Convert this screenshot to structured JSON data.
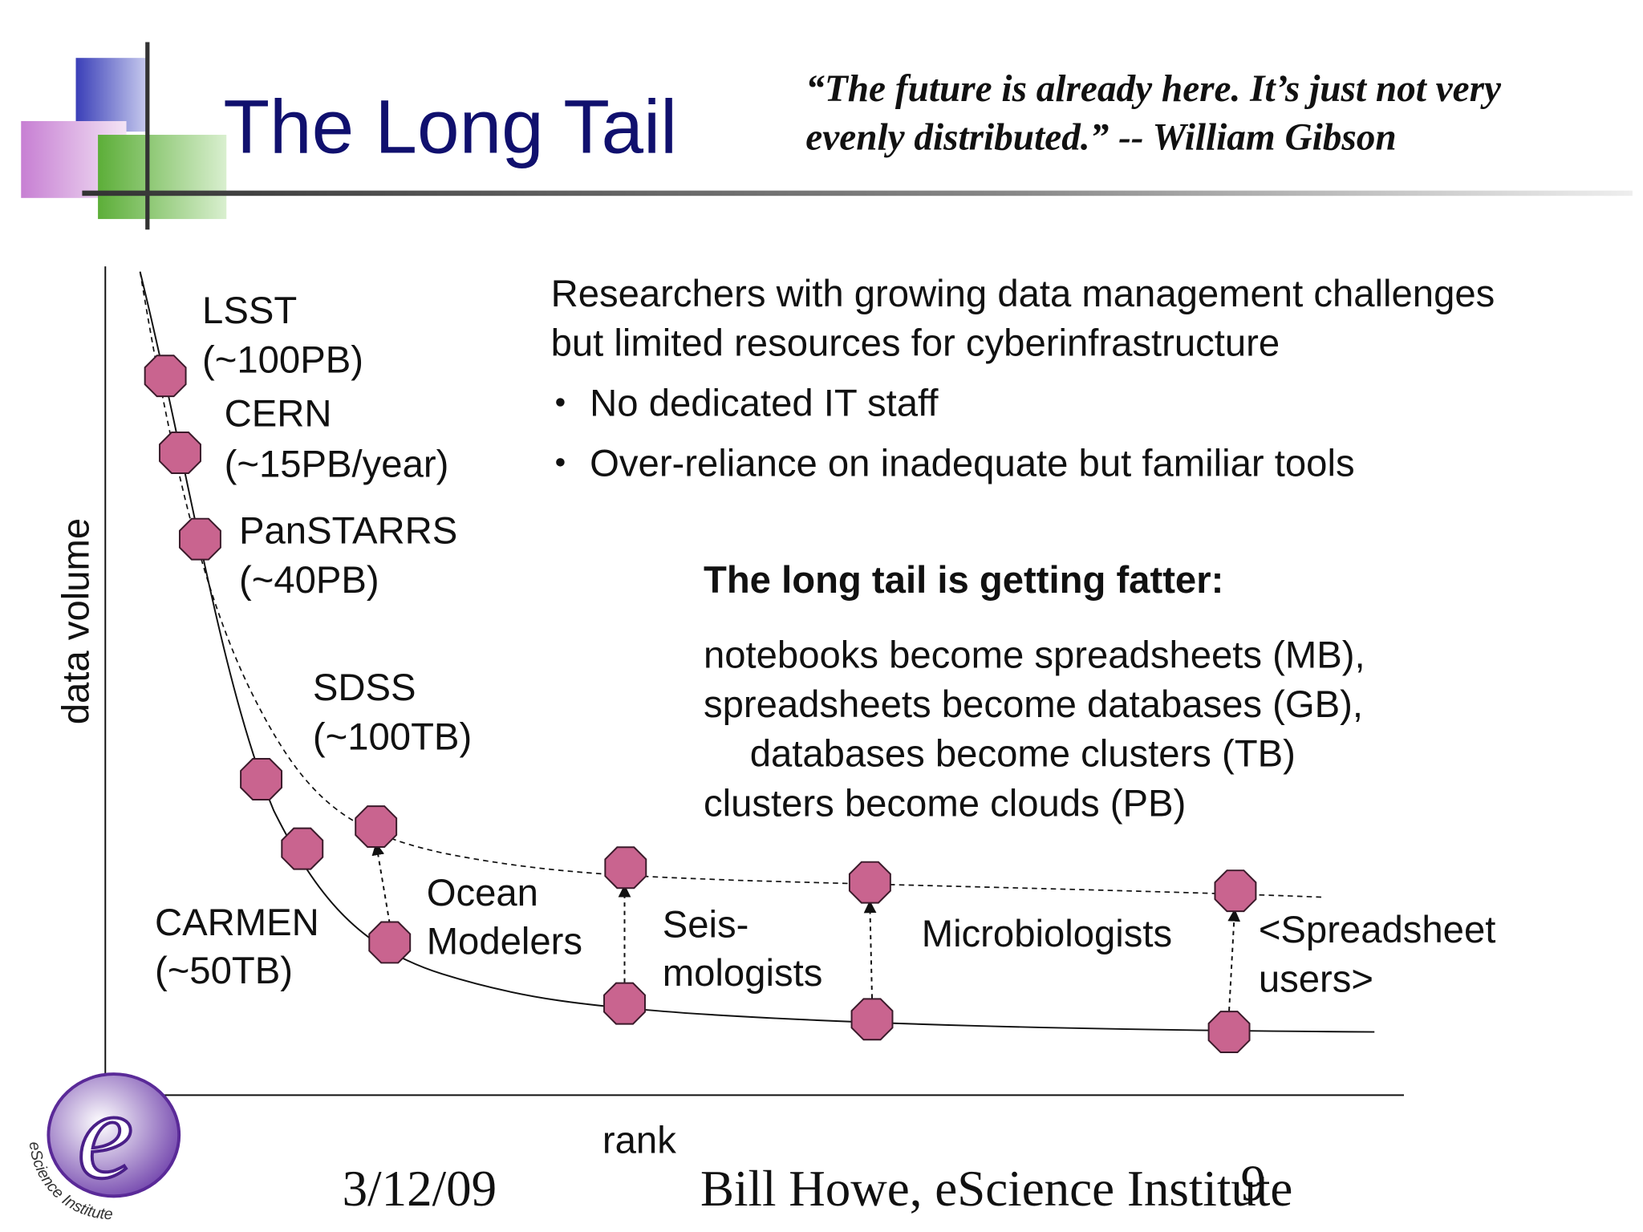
{
  "header": {
    "title": "The Long Tail",
    "quote_lines": [
      "“The future is already here.  It’s just not very",
      "evenly distributed.” -- William Gibson"
    ]
  },
  "axes": {
    "y_label": "data volume",
    "x_label": "rank"
  },
  "nodes": [
    {
      "lines": [
        "LSST",
        "(~100PB)"
      ]
    },
    {
      "lines": [
        "CERN",
        "(~15PB/year)"
      ]
    },
    {
      "lines": [
        "PanSTARRS",
        "(~40PB)"
      ]
    },
    {
      "lines": [
        "SDSS",
        "(~100TB)"
      ]
    },
    {
      "lines": [
        "CARMEN",
        "(~50TB)"
      ]
    },
    {
      "lines": [
        "Ocean",
        "Modelers"
      ]
    },
    {
      "lines": [
        "Seis-",
        "mologists"
      ]
    },
    {
      "lines": [
        "Microbiologists"
      ]
    },
    {
      "lines": [
        "<Spreadsheet",
        "users>"
      ]
    }
  ],
  "description": {
    "lines": [
      "Researchers with growing data management challenges",
      "but limited resources for cyberinfrastructure"
    ],
    "bullets": [
      "No dedicated IT staff",
      "Over-reliance on inadequate but familiar tools"
    ]
  },
  "fatter": {
    "heading": "The long tail is getting fatter:",
    "lines": [
      "notebooks become spreadsheets (MB),",
      "spreadsheets become databases (GB),",
      "databases become clusters (TB)",
      "clusters become clouds (PB)"
    ]
  },
  "footer": {
    "date": "3/12/09",
    "author": "Bill Howe, eScience Institute",
    "page": "9",
    "logo_text": "eScience Institute"
  }
}
